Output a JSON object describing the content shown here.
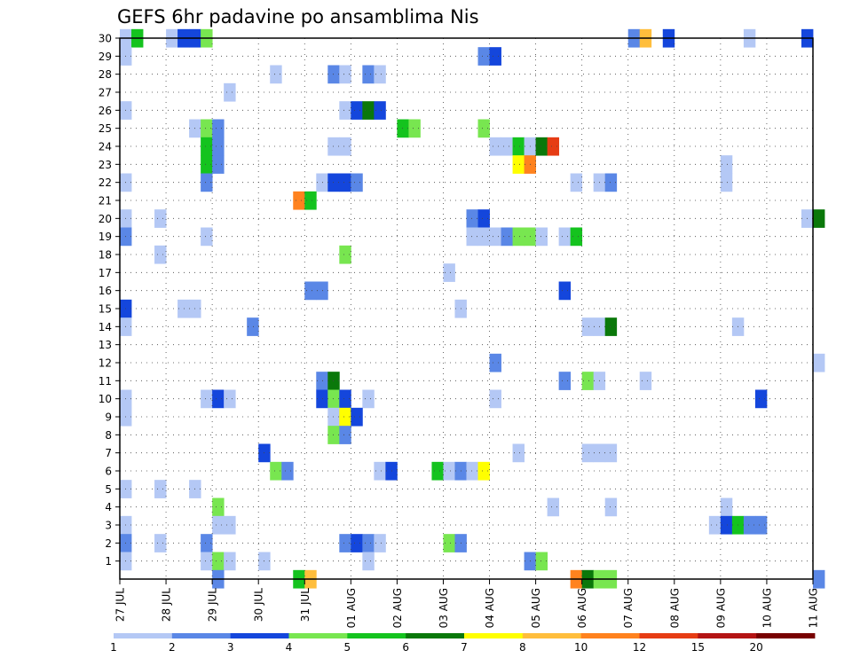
{
  "chart_data": {
    "type": "heatmap",
    "title": "GEFS 6hr padavine po ansamblima Nis",
    "x_ticks": [
      "27 JUL",
      "28 JUL",
      "29 JUL",
      "30 JUL",
      "31 JUL",
      "01 AUG",
      "02 AUG",
      "03 AUG",
      "04 AUG",
      "05 AUG",
      "06 AUG",
      "07 AUG",
      "08 AUG",
      "09 AUG",
      "10 AUG",
      "11 AUG"
    ],
    "x_range_days": [
      0,
      15
    ],
    "y_ticks": [
      1,
      2,
      3,
      4,
      5,
      6,
      7,
      8,
      9,
      10,
      11,
      12,
      13,
      14,
      15,
      16,
      17,
      18,
      19,
      20,
      21,
      22,
      23,
      24,
      25,
      26,
      27,
      28,
      29,
      30
    ],
    "y_range": [
      0,
      30
    ],
    "grid": true,
    "colorbar": {
      "labels": [
        "1",
        "2",
        "3",
        "4",
        "5",
        "6",
        "7",
        "8",
        "10",
        "12",
        "15",
        "20"
      ],
      "colors": [
        "#b4c8f5",
        "#5a87e6",
        "#1446dc",
        "#78e650",
        "#14c31e",
        "#0a780a",
        "#ffff00",
        "#ffbe3c",
        "#ff821e",
        "#e63c14",
        "#b41414",
        "#780000"
      ]
    },
    "cells": [
      [
        0,
        30,
        0
      ],
      [
        1,
        30,
        4
      ],
      [
        4,
        30,
        0
      ],
      [
        5,
        30,
        2
      ],
      [
        6,
        30,
        2
      ],
      [
        7,
        30,
        3
      ],
      [
        44,
        30,
        1
      ],
      [
        45,
        30,
        7
      ],
      [
        47,
        30,
        2
      ],
      [
        54,
        30,
        0
      ],
      [
        59,
        30,
        2
      ],
      [
        0,
        29,
        0
      ],
      [
        31,
        29,
        1
      ],
      [
        32,
        29,
        2
      ],
      [
        13,
        28,
        0
      ],
      [
        18,
        28,
        1
      ],
      [
        19,
        28,
        0
      ],
      [
        21,
        28,
        1
      ],
      [
        22,
        28,
        0
      ],
      [
        9,
        27,
        0
      ],
      [
        0,
        26,
        0
      ],
      [
        19,
        26,
        0
      ],
      [
        20,
        26,
        2
      ],
      [
        21,
        26,
        5
      ],
      [
        22,
        26,
        2
      ],
      [
        6,
        25,
        0
      ],
      [
        7,
        25,
        3
      ],
      [
        8,
        25,
        1
      ],
      [
        24,
        25,
        4
      ],
      [
        25,
        25,
        3
      ],
      [
        31,
        25,
        3
      ],
      [
        7,
        24,
        4
      ],
      [
        8,
        24,
        1
      ],
      [
        18,
        24,
        0
      ],
      [
        19,
        24,
        0
      ],
      [
        32,
        24,
        0
      ],
      [
        33,
        24,
        0
      ],
      [
        34,
        24,
        4
      ],
      [
        35,
        24,
        0
      ],
      [
        36,
        24,
        5
      ],
      [
        37,
        24,
        9
      ],
      [
        7,
        23,
        4
      ],
      [
        8,
        23,
        1
      ],
      [
        34,
        23,
        6
      ],
      [
        35,
        23,
        8
      ],
      [
        52,
        23,
        0
      ],
      [
        7,
        22,
        1
      ],
      [
        52,
        22,
        0
      ],
      [
        0,
        22,
        0
      ],
      [
        17,
        22,
        0
      ],
      [
        18,
        22,
        2
      ],
      [
        19,
        22,
        2
      ],
      [
        20,
        22,
        1
      ],
      [
        39,
        22,
        0
      ],
      [
        41,
        22,
        0
      ],
      [
        42,
        22,
        1
      ],
      [
        15,
        21,
        8
      ],
      [
        16,
        21,
        4
      ],
      [
        0,
        20,
        0
      ],
      [
        3,
        20,
        0
      ],
      [
        30,
        20,
        1
      ],
      [
        31,
        20,
        2
      ],
      [
        59,
        20,
        0
      ],
      [
        60,
        20,
        5
      ],
      [
        0,
        19,
        1
      ],
      [
        7,
        19,
        0
      ],
      [
        30,
        19,
        0
      ],
      [
        31,
        19,
        0
      ],
      [
        32,
        19,
        0
      ],
      [
        33,
        19,
        1
      ],
      [
        34,
        19,
        3
      ],
      [
        35,
        19,
        3
      ],
      [
        36,
        19,
        0
      ],
      [
        38,
        19,
        0
      ],
      [
        39,
        19,
        4
      ],
      [
        3,
        18,
        0
      ],
      [
        19,
        18,
        3
      ],
      [
        28,
        17,
        0
      ],
      [
        16,
        16,
        1
      ],
      [
        17,
        16,
        1
      ],
      [
        38,
        16,
        2
      ],
      [
        0,
        15,
        2
      ],
      [
        5,
        15,
        0
      ],
      [
        6,
        15,
        0
      ],
      [
        29,
        15,
        0
      ],
      [
        0,
        14,
        0
      ],
      [
        11,
        14,
        1
      ],
      [
        40,
        14,
        0
      ],
      [
        41,
        14,
        0
      ],
      [
        42,
        14,
        5
      ],
      [
        53,
        14,
        0
      ],
      [
        32,
        12,
        1
      ],
      [
        60,
        12,
        0
      ],
      [
        17,
        11,
        1
      ],
      [
        18,
        11,
        5
      ],
      [
        38,
        11,
        1
      ],
      [
        40,
        11,
        3
      ],
      [
        41,
        11,
        0
      ],
      [
        45,
        11,
        0
      ],
      [
        0,
        10,
        0
      ],
      [
        7,
        10,
        0
      ],
      [
        8,
        10,
        2
      ],
      [
        9,
        10,
        0
      ],
      [
        17,
        10,
        2
      ],
      [
        18,
        10,
        3
      ],
      [
        19,
        10,
        2
      ],
      [
        21,
        10,
        0
      ],
      [
        32,
        10,
        0
      ],
      [
        55,
        10,
        2
      ],
      [
        0,
        9,
        0
      ],
      [
        18,
        9,
        0
      ],
      [
        19,
        9,
        6
      ],
      [
        20,
        9,
        2
      ],
      [
        18,
        8,
        3
      ],
      [
        19,
        8,
        1
      ],
      [
        12,
        7,
        2
      ],
      [
        34,
        7,
        0
      ],
      [
        40,
        7,
        0
      ],
      [
        41,
        7,
        0
      ],
      [
        42,
        7,
        0
      ],
      [
        13,
        6,
        3
      ],
      [
        14,
        6,
        1
      ],
      [
        22,
        6,
        0
      ],
      [
        23,
        6,
        2
      ],
      [
        27,
        6,
        4
      ],
      [
        28,
        6,
        0
      ],
      [
        29,
        6,
        1
      ],
      [
        30,
        6,
        0
      ],
      [
        31,
        6,
        6
      ],
      [
        0,
        5,
        0
      ],
      [
        3,
        5,
        0
      ],
      [
        6,
        5,
        0
      ],
      [
        8,
        4,
        3
      ],
      [
        37,
        4,
        0
      ],
      [
        42,
        4,
        0
      ],
      [
        52,
        4,
        0
      ],
      [
        0,
        3,
        0
      ],
      [
        8,
        3,
        0
      ],
      [
        9,
        3,
        0
      ],
      [
        51,
        3,
        0
      ],
      [
        52,
        3,
        2
      ],
      [
        53,
        3,
        4
      ],
      [
        54,
        3,
        1
      ],
      [
        55,
        3,
        1
      ],
      [
        0,
        2,
        1
      ],
      [
        3,
        2,
        0
      ],
      [
        7,
        2,
        1
      ],
      [
        19,
        2,
        1
      ],
      [
        20,
        2,
        2
      ],
      [
        21,
        2,
        1
      ],
      [
        22,
        2,
        0
      ],
      [
        28,
        2,
        3
      ],
      [
        29,
        2,
        1
      ],
      [
        0,
        1,
        0
      ],
      [
        7,
        1,
        0
      ],
      [
        8,
        1,
        3
      ],
      [
        9,
        1,
        0
      ],
      [
        12,
        1,
        0
      ],
      [
        21,
        1,
        0
      ],
      [
        35,
        1,
        1
      ],
      [
        36,
        1,
        3
      ],
      [
        15,
        0,
        4
      ],
      [
        16,
        0,
        7
      ],
      [
        39,
        0,
        8
      ],
      [
        40,
        0,
        5
      ],
      [
        41,
        0,
        3
      ],
      [
        42,
        0,
        3
      ],
      [
        8,
        0,
        1
      ],
      [
        60,
        0,
        1
      ]
    ]
  }
}
